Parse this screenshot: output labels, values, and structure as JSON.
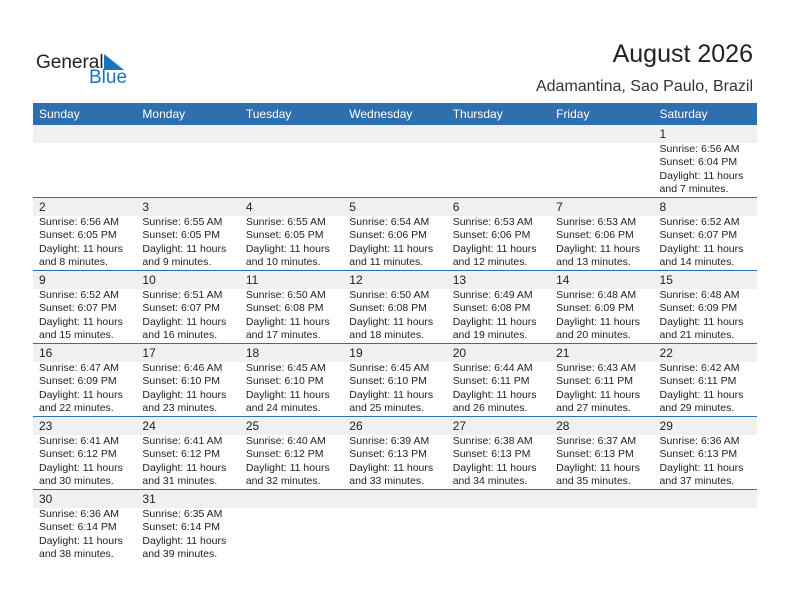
{
  "logo": {
    "text1": "General",
    "text2": "Blue"
  },
  "title": "August 2026",
  "location": "Adamantina, Sao Paulo, Brazil",
  "days": [
    "Sunday",
    "Monday",
    "Tuesday",
    "Wednesday",
    "Thursday",
    "Friday",
    "Saturday"
  ],
  "weeks": [
    [
      null,
      null,
      null,
      null,
      null,
      null,
      {
        "day": "1",
        "sunrise": "Sunrise: 6:56 AM",
        "sunset": "Sunset: 6:04 PM",
        "daylight": "Daylight: 11 hours",
        "minutes": "and 7 minutes."
      }
    ],
    [
      {
        "day": "2",
        "sunrise": "Sunrise: 6:56 AM",
        "sunset": "Sunset: 6:05 PM",
        "daylight": "Daylight: 11 hours",
        "minutes": "and 8 minutes."
      },
      {
        "day": "3",
        "sunrise": "Sunrise: 6:55 AM",
        "sunset": "Sunset: 6:05 PM",
        "daylight": "Daylight: 11 hours",
        "minutes": "and 9 minutes."
      },
      {
        "day": "4",
        "sunrise": "Sunrise: 6:55 AM",
        "sunset": "Sunset: 6:05 PM",
        "daylight": "Daylight: 11 hours",
        "minutes": "and 10 minutes."
      },
      {
        "day": "5",
        "sunrise": "Sunrise: 6:54 AM",
        "sunset": "Sunset: 6:06 PM",
        "daylight": "Daylight: 11 hours",
        "minutes": "and 11 minutes."
      },
      {
        "day": "6",
        "sunrise": "Sunrise: 6:53 AM",
        "sunset": "Sunset: 6:06 PM",
        "daylight": "Daylight: 11 hours",
        "minutes": "and 12 minutes."
      },
      {
        "day": "7",
        "sunrise": "Sunrise: 6:53 AM",
        "sunset": "Sunset: 6:06 PM",
        "daylight": "Daylight: 11 hours",
        "minutes": "and 13 minutes."
      },
      {
        "day": "8",
        "sunrise": "Sunrise: 6:52 AM",
        "sunset": "Sunset: 6:07 PM",
        "daylight": "Daylight: 11 hours",
        "minutes": "and 14 minutes."
      }
    ],
    [
      {
        "day": "9",
        "sunrise": "Sunrise: 6:52 AM",
        "sunset": "Sunset: 6:07 PM",
        "daylight": "Daylight: 11 hours",
        "minutes": "and 15 minutes."
      },
      {
        "day": "10",
        "sunrise": "Sunrise: 6:51 AM",
        "sunset": "Sunset: 6:07 PM",
        "daylight": "Daylight: 11 hours",
        "minutes": "and 16 minutes."
      },
      {
        "day": "11",
        "sunrise": "Sunrise: 6:50 AM",
        "sunset": "Sunset: 6:08 PM",
        "daylight": "Daylight: 11 hours",
        "minutes": "and 17 minutes."
      },
      {
        "day": "12",
        "sunrise": "Sunrise: 6:50 AM",
        "sunset": "Sunset: 6:08 PM",
        "daylight": "Daylight: 11 hours",
        "minutes": "and 18 minutes."
      },
      {
        "day": "13",
        "sunrise": "Sunrise: 6:49 AM",
        "sunset": "Sunset: 6:08 PM",
        "daylight": "Daylight: 11 hours",
        "minutes": "and 19 minutes."
      },
      {
        "day": "14",
        "sunrise": "Sunrise: 6:48 AM",
        "sunset": "Sunset: 6:09 PM",
        "daylight": "Daylight: 11 hours",
        "minutes": "and 20 minutes."
      },
      {
        "day": "15",
        "sunrise": "Sunrise: 6:48 AM",
        "sunset": "Sunset: 6:09 PM",
        "daylight": "Daylight: 11 hours",
        "minutes": "and 21 minutes."
      }
    ],
    [
      {
        "day": "16",
        "sunrise": "Sunrise: 6:47 AM",
        "sunset": "Sunset: 6:09 PM",
        "daylight": "Daylight: 11 hours",
        "minutes": "and 22 minutes."
      },
      {
        "day": "17",
        "sunrise": "Sunrise: 6:46 AM",
        "sunset": "Sunset: 6:10 PM",
        "daylight": "Daylight: 11 hours",
        "minutes": "and 23 minutes."
      },
      {
        "day": "18",
        "sunrise": "Sunrise: 6:45 AM",
        "sunset": "Sunset: 6:10 PM",
        "daylight": "Daylight: 11 hours",
        "minutes": "and 24 minutes."
      },
      {
        "day": "19",
        "sunrise": "Sunrise: 6:45 AM",
        "sunset": "Sunset: 6:10 PM",
        "daylight": "Daylight: 11 hours",
        "minutes": "and 25 minutes."
      },
      {
        "day": "20",
        "sunrise": "Sunrise: 6:44 AM",
        "sunset": "Sunset: 6:11 PM",
        "daylight": "Daylight: 11 hours",
        "minutes": "and 26 minutes."
      },
      {
        "day": "21",
        "sunrise": "Sunrise: 6:43 AM",
        "sunset": "Sunset: 6:11 PM",
        "daylight": "Daylight: 11 hours",
        "minutes": "and 27 minutes."
      },
      {
        "day": "22",
        "sunrise": "Sunrise: 6:42 AM",
        "sunset": "Sunset: 6:11 PM",
        "daylight": "Daylight: 11 hours",
        "minutes": "and 29 minutes."
      }
    ],
    [
      {
        "day": "23",
        "sunrise": "Sunrise: 6:41 AM",
        "sunset": "Sunset: 6:12 PM",
        "daylight": "Daylight: 11 hours",
        "minutes": "and 30 minutes."
      },
      {
        "day": "24",
        "sunrise": "Sunrise: 6:41 AM",
        "sunset": "Sunset: 6:12 PM",
        "daylight": "Daylight: 11 hours",
        "minutes": "and 31 minutes."
      },
      {
        "day": "25",
        "sunrise": "Sunrise: 6:40 AM",
        "sunset": "Sunset: 6:12 PM",
        "daylight": "Daylight: 11 hours",
        "minutes": "and 32 minutes."
      },
      {
        "day": "26",
        "sunrise": "Sunrise: 6:39 AM",
        "sunset": "Sunset: 6:13 PM",
        "daylight": "Daylight: 11 hours",
        "minutes": "and 33 minutes."
      },
      {
        "day": "27",
        "sunrise": "Sunrise: 6:38 AM",
        "sunset": "Sunset: 6:13 PM",
        "daylight": "Daylight: 11 hours",
        "minutes": "and 34 minutes."
      },
      {
        "day": "28",
        "sunrise": "Sunrise: 6:37 AM",
        "sunset": "Sunset: 6:13 PM",
        "daylight": "Daylight: 11 hours",
        "minutes": "and 35 minutes."
      },
      {
        "day": "29",
        "sunrise": "Sunrise: 6:36 AM",
        "sunset": "Sunset: 6:13 PM",
        "daylight": "Daylight: 11 hours",
        "minutes": "and 37 minutes."
      }
    ],
    [
      {
        "day": "30",
        "sunrise": "Sunrise: 6:36 AM",
        "sunset": "Sunset: 6:14 PM",
        "daylight": "Daylight: 11 hours",
        "minutes": "and 38 minutes."
      },
      {
        "day": "31",
        "sunrise": "Sunrise: 6:35 AM",
        "sunset": "Sunset: 6:14 PM",
        "daylight": "Daylight: 11 hours",
        "minutes": "and 39 minutes."
      },
      null,
      null,
      null,
      null,
      null
    ]
  ]
}
